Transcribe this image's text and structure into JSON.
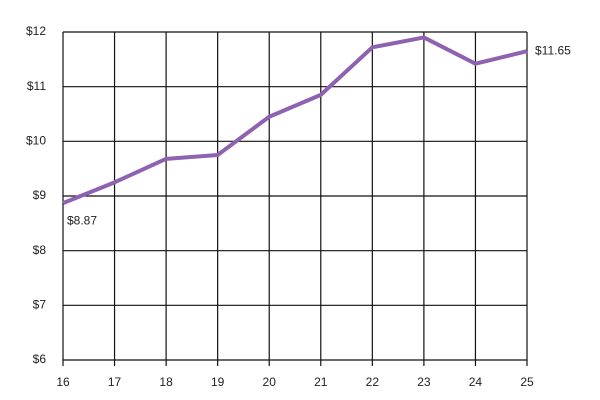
{
  "chart_data": {
    "type": "line",
    "x": [
      16,
      17,
      18,
      19,
      20,
      21,
      22,
      23,
      24,
      25
    ],
    "series": [
      {
        "color": "#8e62b0",
        "values": [
          8.87,
          9.25,
          9.68,
          9.75,
          10.45,
          10.85,
          11.72,
          11.9,
          11.42,
          11.65
        ],
        "value_labels": [
          "$8.87",
          null,
          null,
          null,
          null,
          null,
          null,
          null,
          null,
          "$11.65"
        ]
      }
    ],
    "xlim": [
      16,
      25
    ],
    "xticks": [
      16,
      17,
      18,
      19,
      20,
      21,
      22,
      23,
      24,
      25
    ],
    "ylim": [
      6,
      12
    ],
    "yticks": [
      {
        "value": 6,
        "label": "$6"
      },
      {
        "value": 7,
        "label": "$7"
      },
      {
        "value": 8,
        "label": "$8"
      },
      {
        "value": 9,
        "label": "$9"
      },
      {
        "value": 10,
        "label": "$10"
      },
      {
        "value": 11,
        "label": "$11"
      },
      {
        "value": 12,
        "label": "$12"
      }
    ],
    "grid": true
  }
}
